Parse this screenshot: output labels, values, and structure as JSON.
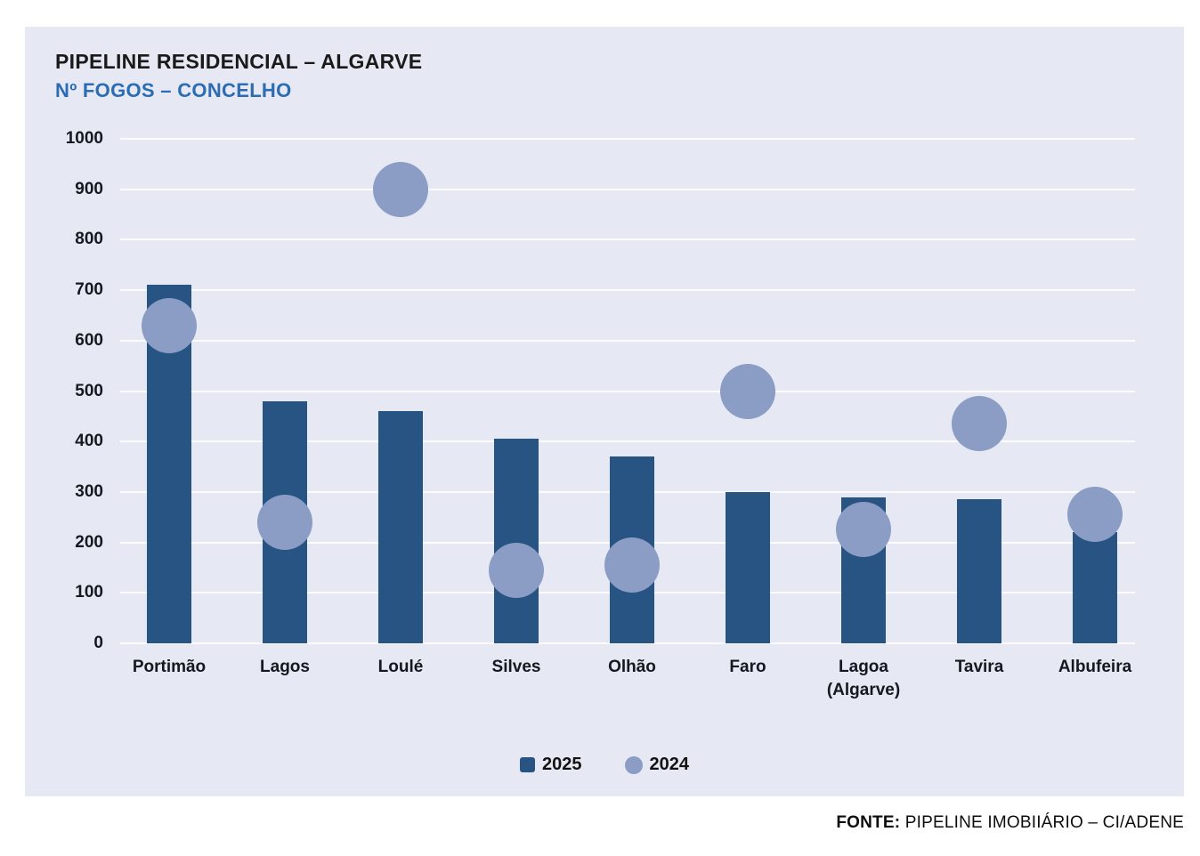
{
  "page": {
    "background": "#FFFFFF",
    "panel_background": "#E6E9F3"
  },
  "header": {
    "title": "PIPELINE RESIDENCIAL – ALGARVE",
    "title_color": "#1A1A1A",
    "subtitle": "Nº FOGOS – CONCELHO",
    "subtitle_color": "#2B6CB3"
  },
  "footer": {
    "source_label": "FONTE:",
    "source_text": "PIPELINE IMOBIIÁRIO – CI/ADENE"
  },
  "chart_data": {
    "type": "bar",
    "subtype": "bar-with-scatter-overlay",
    "title": "PIPELINE RESIDENCIAL – ALGARVE",
    "subtitle": "Nº FOGOS – CONCELHO",
    "categories": [
      "Portimão",
      "Lagos",
      "Loulé",
      "Silves",
      "Olhão",
      "Faro",
      "Lagoa (Algarve)",
      "Tavira",
      "Albufeira"
    ],
    "category_lines": [
      [
        "Portimão"
      ],
      [
        "Lagos"
      ],
      [
        "Loulé"
      ],
      [
        "Silves"
      ],
      [
        "Olhão"
      ],
      [
        "Faro"
      ],
      [
        "Lagoa",
        "(Algarve)"
      ],
      [
        "Tavira"
      ],
      [
        "Albufeira"
      ]
    ],
    "series": [
      {
        "name": "2025",
        "mark": "bar",
        "color": "#275483",
        "values": [
          710,
          480,
          460,
          405,
          370,
          300,
          290,
          285,
          220
        ]
      },
      {
        "name": "2024",
        "mark": "circle",
        "color": "#8B9DC4",
        "values": [
          630,
          240,
          900,
          145,
          155,
          500,
          225,
          435,
          255
        ]
      }
    ],
    "xlabel": "",
    "ylabel": "",
    "ylim": [
      0,
      1000
    ],
    "ytick_interval": 100,
    "yticks": [
      0,
      100,
      200,
      300,
      400,
      500,
      600,
      700,
      800,
      900,
      1000
    ],
    "grid": true,
    "gridline_color": "#FFFFFF",
    "legend_position": "bottom",
    "legend": [
      "2025",
      "2024"
    ]
  }
}
